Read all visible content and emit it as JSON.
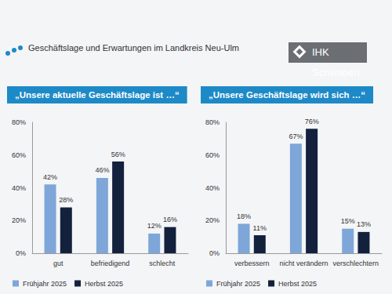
{
  "header": {
    "title": "Geschäftslage und Erwartungen im Landkreis Neu-Ulm",
    "logo": "IHK Schwaben"
  },
  "chart_data": [
    {
      "type": "bar",
      "title": "„Unsere aktuelle Geschäftslage ist …“",
      "categories": [
        "gut",
        "befriedigend",
        "schlecht"
      ],
      "series": [
        {
          "name": "Frühjahr 2025",
          "color": "#7ea6d8",
          "values": [
            42,
            46,
            12
          ],
          "value_labels": [
            "42%",
            "46%",
            "12%"
          ]
        },
        {
          "name": "Herbst 2025",
          "color": "#14213d",
          "values": [
            28,
            56,
            16
          ],
          "value_labels": [
            "28%",
            "56%",
            "16%"
          ]
        }
      ],
      "ylim": [
        0,
        80
      ],
      "yticks": [
        {
          "value": 0,
          "label": "0%"
        },
        {
          "value": 20,
          "label": "20%"
        },
        {
          "value": 40,
          "label": "40%"
        },
        {
          "value": 60,
          "label": "60%"
        },
        {
          "value": 80,
          "label": "80%"
        }
      ],
      "grid": false,
      "legend": "bottom-left",
      "data_labels": true
    },
    {
      "type": "bar",
      "title": "„Unsere Geschäftslage wird sich …“",
      "categories": [
        "verbessern",
        "nicht verändern",
        "verschlechtern"
      ],
      "series": [
        {
          "name": "Frühjahr 2025",
          "color": "#7ea6d8",
          "values": [
            18,
            67,
            15
          ],
          "value_labels": [
            "18%",
            "67%",
            "15%"
          ]
        },
        {
          "name": "Herbst 2025",
          "color": "#14213d",
          "values": [
            11,
            76,
            13
          ],
          "value_labels": [
            "11%",
            "76%",
            "13%"
          ]
        }
      ],
      "ylim": [
        0,
        80
      ],
      "yticks": [
        {
          "value": 0,
          "label": "0%"
        },
        {
          "value": 20,
          "label": "20%"
        },
        {
          "value": 40,
          "label": "40%"
        },
        {
          "value": 60,
          "label": "60%"
        },
        {
          "value": 80,
          "label": "80%"
        }
      ],
      "grid": false,
      "legend": "bottom-left",
      "data_labels": true
    }
  ]
}
